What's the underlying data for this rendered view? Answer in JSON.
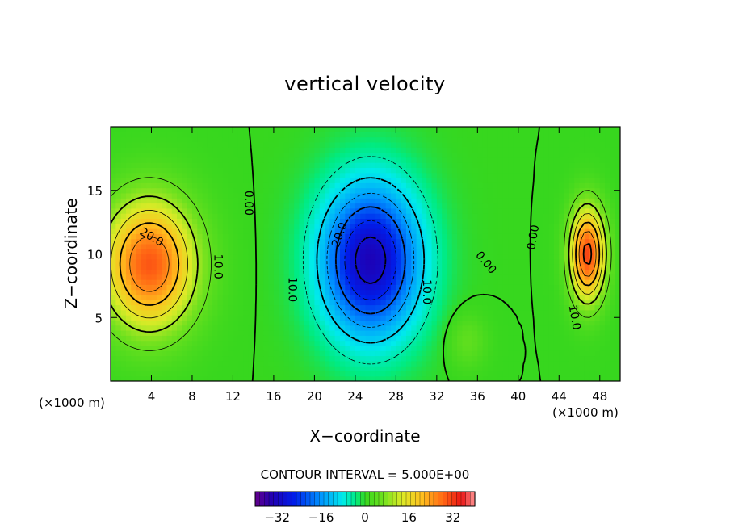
{
  "chart_data": {
    "type": "heatmap",
    "title": "vertical velocity",
    "xlabel": "X−coordinate",
    "ylabel": "Z−coordinate",
    "x_unit": "(×1000 m)",
    "x_unit_right": "(×1000 m)",
    "xlim": [
      0,
      50
    ],
    "ylim": [
      0,
      20
    ],
    "x_ticks": [
      4,
      8,
      12,
      16,
      20,
      24,
      28,
      32,
      36,
      40,
      44,
      48
    ],
    "y_ticks": [
      5,
      10,
      15
    ],
    "color_range": [
      -40,
      40
    ],
    "colorbar_ticks": [
      -32,
      -16,
      0,
      16,
      32
    ],
    "colorbar_tick_labels": [
      "−32",
      "−16",
      "0",
      "16",
      "32"
    ],
    "contour_interval_label": "CONTOUR INTERVAL = 5.000E+00",
    "contour_labels": [
      {
        "text": "20.0",
        "x": 4.0,
        "z": 11.3,
        "rot": 30
      },
      {
        "text": "10.0",
        "x": 10.5,
        "z": 9.0,
        "rot": 90
      },
      {
        "text": "0.00",
        "x": 13.5,
        "z": 14.0,
        "rot": 90
      },
      {
        "text": "10.0",
        "x": 17.8,
        "z": 7.2,
        "rot": 90
      },
      {
        "text": "20.0",
        "x": 22.5,
        "z": 11.5,
        "rot": -70
      },
      {
        "text": "10.0",
        "x": 31.0,
        "z": 7.0,
        "rot": 90
      },
      {
        "text": "0.00",
        "x": 36.8,
        "z": 9.3,
        "rot": 50
      },
      {
        "text": "0.00",
        "x": 41.5,
        "z": 11.3,
        "rot": -80
      },
      {
        "text": "10.0",
        "x": 45.5,
        "z": 5.0,
        "rot": 80
      }
    ],
    "features": [
      {
        "name": "updraft-left",
        "x": 3.8,
        "z": 9.2,
        "peak": 30,
        "sx": 3.2,
        "sz": 3.6
      },
      {
        "name": "downdraft-center",
        "x": 25.5,
        "z": 9.5,
        "peak": -33,
        "sx": 3.4,
        "sz": 4.2
      },
      {
        "name": "updraft-right",
        "x": 46.8,
        "z": 10.0,
        "peak": 32,
        "sx": 1.2,
        "sz": 2.6
      },
      {
        "name": "weak-updraft",
        "x": 35.0,
        "z": 3.2,
        "peak": 5,
        "sx": 1.3,
        "sz": 1.5
      }
    ],
    "grid": false,
    "legend": "bottom"
  }
}
